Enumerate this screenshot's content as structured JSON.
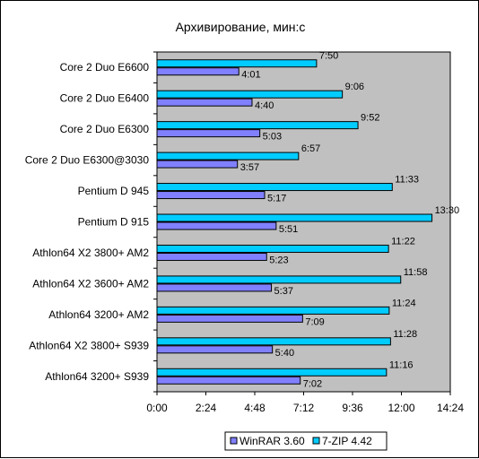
{
  "chart_data": {
    "type": "bar",
    "orientation": "horizontal",
    "title": "Архивирование, мин:с",
    "xlabel": "",
    "ylabel": "",
    "categories": [
      "Core 2 Duo E6600",
      "Core 2 Duo E6400",
      "Core 2 Duo E6300",
      "Core 2 Duo E6300@3030",
      "Pentium D 945",
      "Pentium D 915",
      "Athlon64 X2 3800+ AM2",
      "Athlon64 X2 3600+ AM2",
      "Athlon64 3200+ AM2",
      "Athlon64 X2 3800+ S939",
      "Athlon64 3200+ S939"
    ],
    "series": [
      {
        "name": "WinRAR 3.60",
        "color": "#8080ff",
        "values": [
          241,
          280,
          303,
          237,
          317,
          351,
          323,
          337,
          429,
          340,
          422
        ],
        "labels": [
          "4:01",
          "4:40",
          "5:03",
          "3:57",
          "5:17",
          "5:51",
          "5:23",
          "5:37",
          "7:09",
          "5:40",
          "7:02"
        ]
      },
      {
        "name": "7-ZIP 4.42",
        "color": "#00ccff",
        "values": [
          470,
          546,
          592,
          417,
          693,
          810,
          682,
          718,
          684,
          688,
          676
        ],
        "labels": [
          "7:50",
          "9:06",
          "9:52",
          "6:57",
          "11:33",
          "13:30",
          "11:22",
          "11:58",
          "11:24",
          "11:28",
          "11:16"
        ]
      }
    ],
    "xlim": [
      0,
      864
    ],
    "xticks": [
      0,
      144,
      288,
      432,
      576,
      720,
      864
    ],
    "xtick_labels": [
      "0:00",
      "2:24",
      "4:48",
      "7:12",
      "9:36",
      "12:00",
      "14:24"
    ],
    "grid": false,
    "plot_background": "#c0c0c0",
    "legend_position": "bottom-right"
  }
}
